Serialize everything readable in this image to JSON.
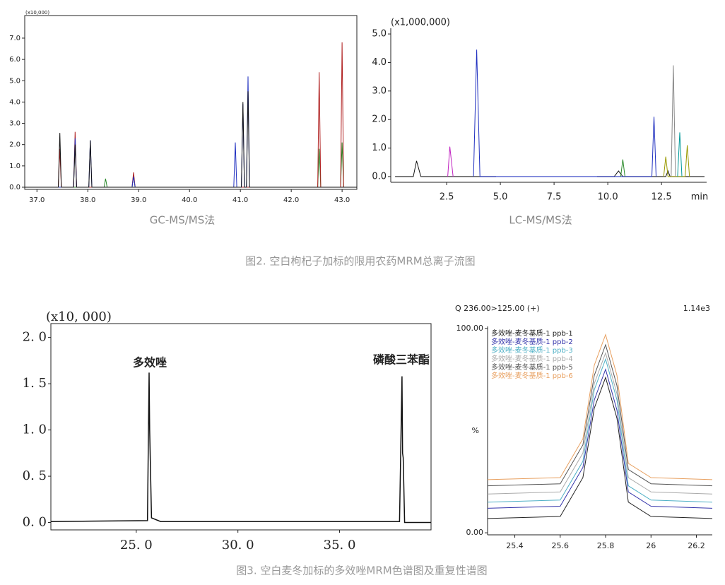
{
  "chart_data": [
    {
      "type": "line",
      "title": "(x10,000)",
      "caption": "GC-MS/MS法",
      "xlim": [
        36.76,
        43.29
      ],
      "ylim": [
        -0.1,
        8.06
      ],
      "xticks": [
        {
          "value": 37,
          "label": "37.0"
        },
        {
          "value": 38,
          "label": "38.0"
        },
        {
          "value": 39,
          "label": "39.0"
        },
        {
          "value": 40,
          "label": "40.0"
        },
        {
          "value": 41,
          "label": "41.0"
        },
        {
          "value": 42,
          "label": "42.0"
        },
        {
          "value": 43,
          "label": "43.0"
        }
      ],
      "yticks": [
        {
          "value": 0,
          "label": "0.0"
        },
        {
          "value": 1,
          "label": "1.0"
        },
        {
          "value": 2,
          "label": "2.0"
        },
        {
          "value": 3,
          "label": "3.0"
        },
        {
          "value": 4,
          "label": "4.0"
        },
        {
          "value": 5,
          "label": "5.0"
        },
        {
          "value": 6,
          "label": "6.0"
        },
        {
          "value": 7,
          "label": "7.0"
        }
      ],
      "series": [
        {
          "color": "#2a8a2a",
          "x": [
            36.76,
            38.32,
            38.35,
            38.38,
            38.87,
            38.9,
            38.93,
            42.52,
            42.55,
            42.58,
            42.97,
            43.0,
            43.03,
            43.29
          ],
          "values": [
            0,
            0,
            0.4,
            0,
            0,
            0.6,
            0,
            0,
            1.8,
            0,
            0,
            2.1,
            0,
            0
          ]
        },
        {
          "color": "#b02020",
          "x": [
            36.76,
            37.42,
            37.45,
            37.48,
            37.72,
            37.75,
            37.78,
            38.87,
            38.9,
            38.93,
            42.52,
            42.55,
            42.58,
            42.97,
            43.0,
            43.03,
            43.29
          ],
          "values": [
            0,
            0,
            1.8,
            0,
            0,
            2.6,
            0,
            0,
            0.7,
            0,
            0,
            5.4,
            0,
            0,
            6.8,
            0,
            0
          ]
        },
        {
          "color": "#2030c0",
          "x": [
            36.76,
            37.72,
            37.75,
            37.78,
            38.02,
            38.05,
            38.08,
            38.87,
            38.9,
            38.93,
            40.87,
            40.9,
            40.93,
            41.02,
            41.05,
            41.08,
            41.12,
            41.15,
            41.18,
            43.29
          ],
          "values": [
            0,
            0,
            2.3,
            0,
            0,
            2.2,
            0,
            0,
            0.5,
            0,
            0,
            2.1,
            0,
            0,
            3.9,
            0,
            0,
            5.2,
            0,
            0
          ]
        },
        {
          "color": "#111111",
          "x": [
            36.76,
            37.42,
            37.45,
            37.48,
            37.72,
            37.75,
            37.78,
            38.02,
            38.05,
            38.08,
            41.02,
            41.05,
            41.08,
            41.12,
            41.15,
            41.18,
            43.29
          ],
          "values": [
            0,
            0,
            2.55,
            0,
            0,
            2.0,
            0,
            0,
            2.2,
            0,
            0,
            4.0,
            0,
            0,
            4.5,
            0,
            0
          ]
        }
      ]
    },
    {
      "type": "line",
      "title": "(x1,000,000)",
      "caption": "LC-MS/MS法",
      "xlabel": "min",
      "xlim": [
        -0.1,
        14.6
      ],
      "ylim": [
        -0.2,
        5.2
      ],
      "xticks": [
        2.5,
        {
          "value": 5,
          "label": "5.0"
        },
        7.5,
        {
          "value": 10,
          "label": "10.0"
        },
        12.5
      ],
      "yticks": [
        {
          "value": 0,
          "label": "0.0"
        },
        {
          "value": 1,
          "label": "1.0"
        },
        {
          "value": 2,
          "label": "2.0"
        },
        {
          "value": 3,
          "label": "3.0"
        },
        {
          "value": 4,
          "label": "4.0"
        },
        {
          "value": 5,
          "label": "5.0"
        }
      ],
      "series": [
        {
          "color": "#111111",
          "x": [
            0.1,
            0.95,
            1.1,
            1.3,
            4.8,
            7.0,
            9.5,
            10.3,
            10.5,
            10.7,
            12.7,
            12.8,
            12.9,
            14.5
          ],
          "values": [
            0,
            0,
            0.55,
            0,
            0,
            null,
            0,
            0,
            0.2,
            0,
            0,
            0.2,
            0,
            0
          ]
        },
        {
          "color": "#c020c0",
          "x": [
            2.55,
            2.65,
            2.8
          ],
          "values": [
            0,
            1.05,
            0
          ]
        },
        {
          "color": "#2030c0",
          "x": [
            3.75,
            3.9,
            4.05,
            12.05,
            12.15,
            12.25
          ],
          "values": [
            0,
            4.45,
            0,
            0,
            2.1,
            0
          ]
        },
        {
          "color": "#2a8a2a",
          "x": [
            10.6,
            10.7,
            10.8
          ],
          "values": [
            0,
            0.6,
            0
          ]
        },
        {
          "color": "#999900",
          "x": [
            12.6,
            12.7,
            12.8,
            13.6,
            13.7,
            13.8
          ],
          "values": [
            0,
            0.7,
            0,
            0,
            1.1,
            0
          ]
        },
        {
          "color": "#888888",
          "x": [
            12.95,
            13.05,
            13.15
          ],
          "values": [
            0,
            3.9,
            0
          ]
        },
        {
          "color": "#009999",
          "x": [
            13.25,
            13.35,
            13.45
          ],
          "values": [
            0,
            1.55,
            0
          ]
        }
      ]
    },
    {
      "type": "line",
      "title": "(x10, 000)",
      "annotations": [
        "多效唑",
        "磷酸三苯酯"
      ],
      "xlim": [
        20.8,
        39.5
      ],
      "ylim": [
        -0.08,
        2.15
      ],
      "xticks": [
        {
          "value": 25,
          "label": "25. 0"
        },
        {
          "value": 30,
          "label": "30. 0"
        },
        {
          "value": 35,
          "label": "35. 0"
        }
      ],
      "yticks": [
        {
          "value": 0,
          "label": "0. 0"
        },
        {
          "value": 0.5,
          "label": "0. 5"
        },
        {
          "value": 1,
          "label": "1. 0"
        },
        {
          "value": 1.5,
          "label": "1. 5"
        },
        {
          "value": 2,
          "label": "2. 0"
        }
      ],
      "series": [
        {
          "color": "#111111",
          "x": [
            20.8,
            25.55,
            25.63,
            25.66,
            25.75,
            26.2,
            37.95,
            38.07,
            38.1,
            38.13,
            38.2,
            39.5
          ],
          "values": [
            0.01,
            0.02,
            1.62,
            1.0,
            0.05,
            0.01,
            0.01,
            1.58,
            0.75,
            0.7,
            0.0,
            0.0
          ]
        }
      ]
    },
    {
      "type": "line",
      "subtitle": "Q 236.00>125.00 (+)",
      "corner_label": "1.14e3",
      "ylabel": "%",
      "xlim": [
        25.28,
        26.27
      ],
      "ylim": [
        -1,
        101
      ],
      "xticks": [
        25.4,
        25.6,
        25.8,
        26.0,
        26.2
      ],
      "yticks": [
        {
          "value": 100,
          "label": "100.00"
        },
        {
          "value": 0,
          "label": "0.00"
        }
      ],
      "series": [
        {
          "name": "多效唑-麦冬基质-1 ppb-1",
          "color": "#222222",
          "x": [
            25.28,
            25.6,
            25.7,
            25.75,
            25.8,
            25.85,
            25.9,
            26.0,
            26.27
          ],
          "values": [
            7,
            8,
            27,
            61,
            76,
            56,
            15,
            8,
            7
          ]
        },
        {
          "name": "多效唑-麦冬基质-1 ppb-2",
          "color": "#3333aa",
          "x": [
            25.28,
            25.6,
            25.7,
            25.75,
            25.8,
            25.85,
            25.9,
            26.0,
            26.27
          ],
          "values": [
            12,
            13,
            32,
            65,
            80,
            60,
            20,
            13,
            12
          ]
        },
        {
          "name": "多效唑-麦冬基质-1 ppb-3",
          "color": "#4fb0c6",
          "x": [
            25.28,
            25.6,
            25.7,
            25.75,
            25.8,
            25.85,
            25.9,
            26.0,
            26.27
          ],
          "values": [
            15,
            16,
            35,
            70,
            85,
            65,
            23,
            16,
            15
          ]
        },
        {
          "name": "多效唑-麦冬基质-1 ppb-4",
          "color": "#aaaaaa",
          "x": [
            25.28,
            25.6,
            25.7,
            25.75,
            25.8,
            25.85,
            25.9,
            26.0,
            26.27
          ],
          "values": [
            19,
            20,
            39,
            73,
            88,
            68,
            27,
            20,
            19
          ]
        },
        {
          "name": "多效唑-麦冬基质-1 ppb-5",
          "color": "#555555",
          "x": [
            25.28,
            25.6,
            25.7,
            25.75,
            25.8,
            25.85,
            25.9,
            26.0,
            26.27
          ],
          "values": [
            23,
            24,
            43,
            77,
            92,
            72,
            31,
            24,
            23
          ]
        },
        {
          "name": "多效唑-麦冬基质-1 ppb-6",
          "color": "#e8a060",
          "x": [
            25.28,
            25.6,
            25.7,
            25.75,
            25.8,
            25.85,
            25.9,
            26.0,
            26.27
          ],
          "values": [
            26,
            27,
            46,
            82,
            97,
            77,
            34,
            27,
            26
          ]
        }
      ]
    }
  ],
  "figure_captions": [
    "图2. 空白枸杞子加标的限用农药MRM总离子流图",
    "图3. 空白麦冬加标的多效唑MRM色谱图及重复性谱图"
  ]
}
